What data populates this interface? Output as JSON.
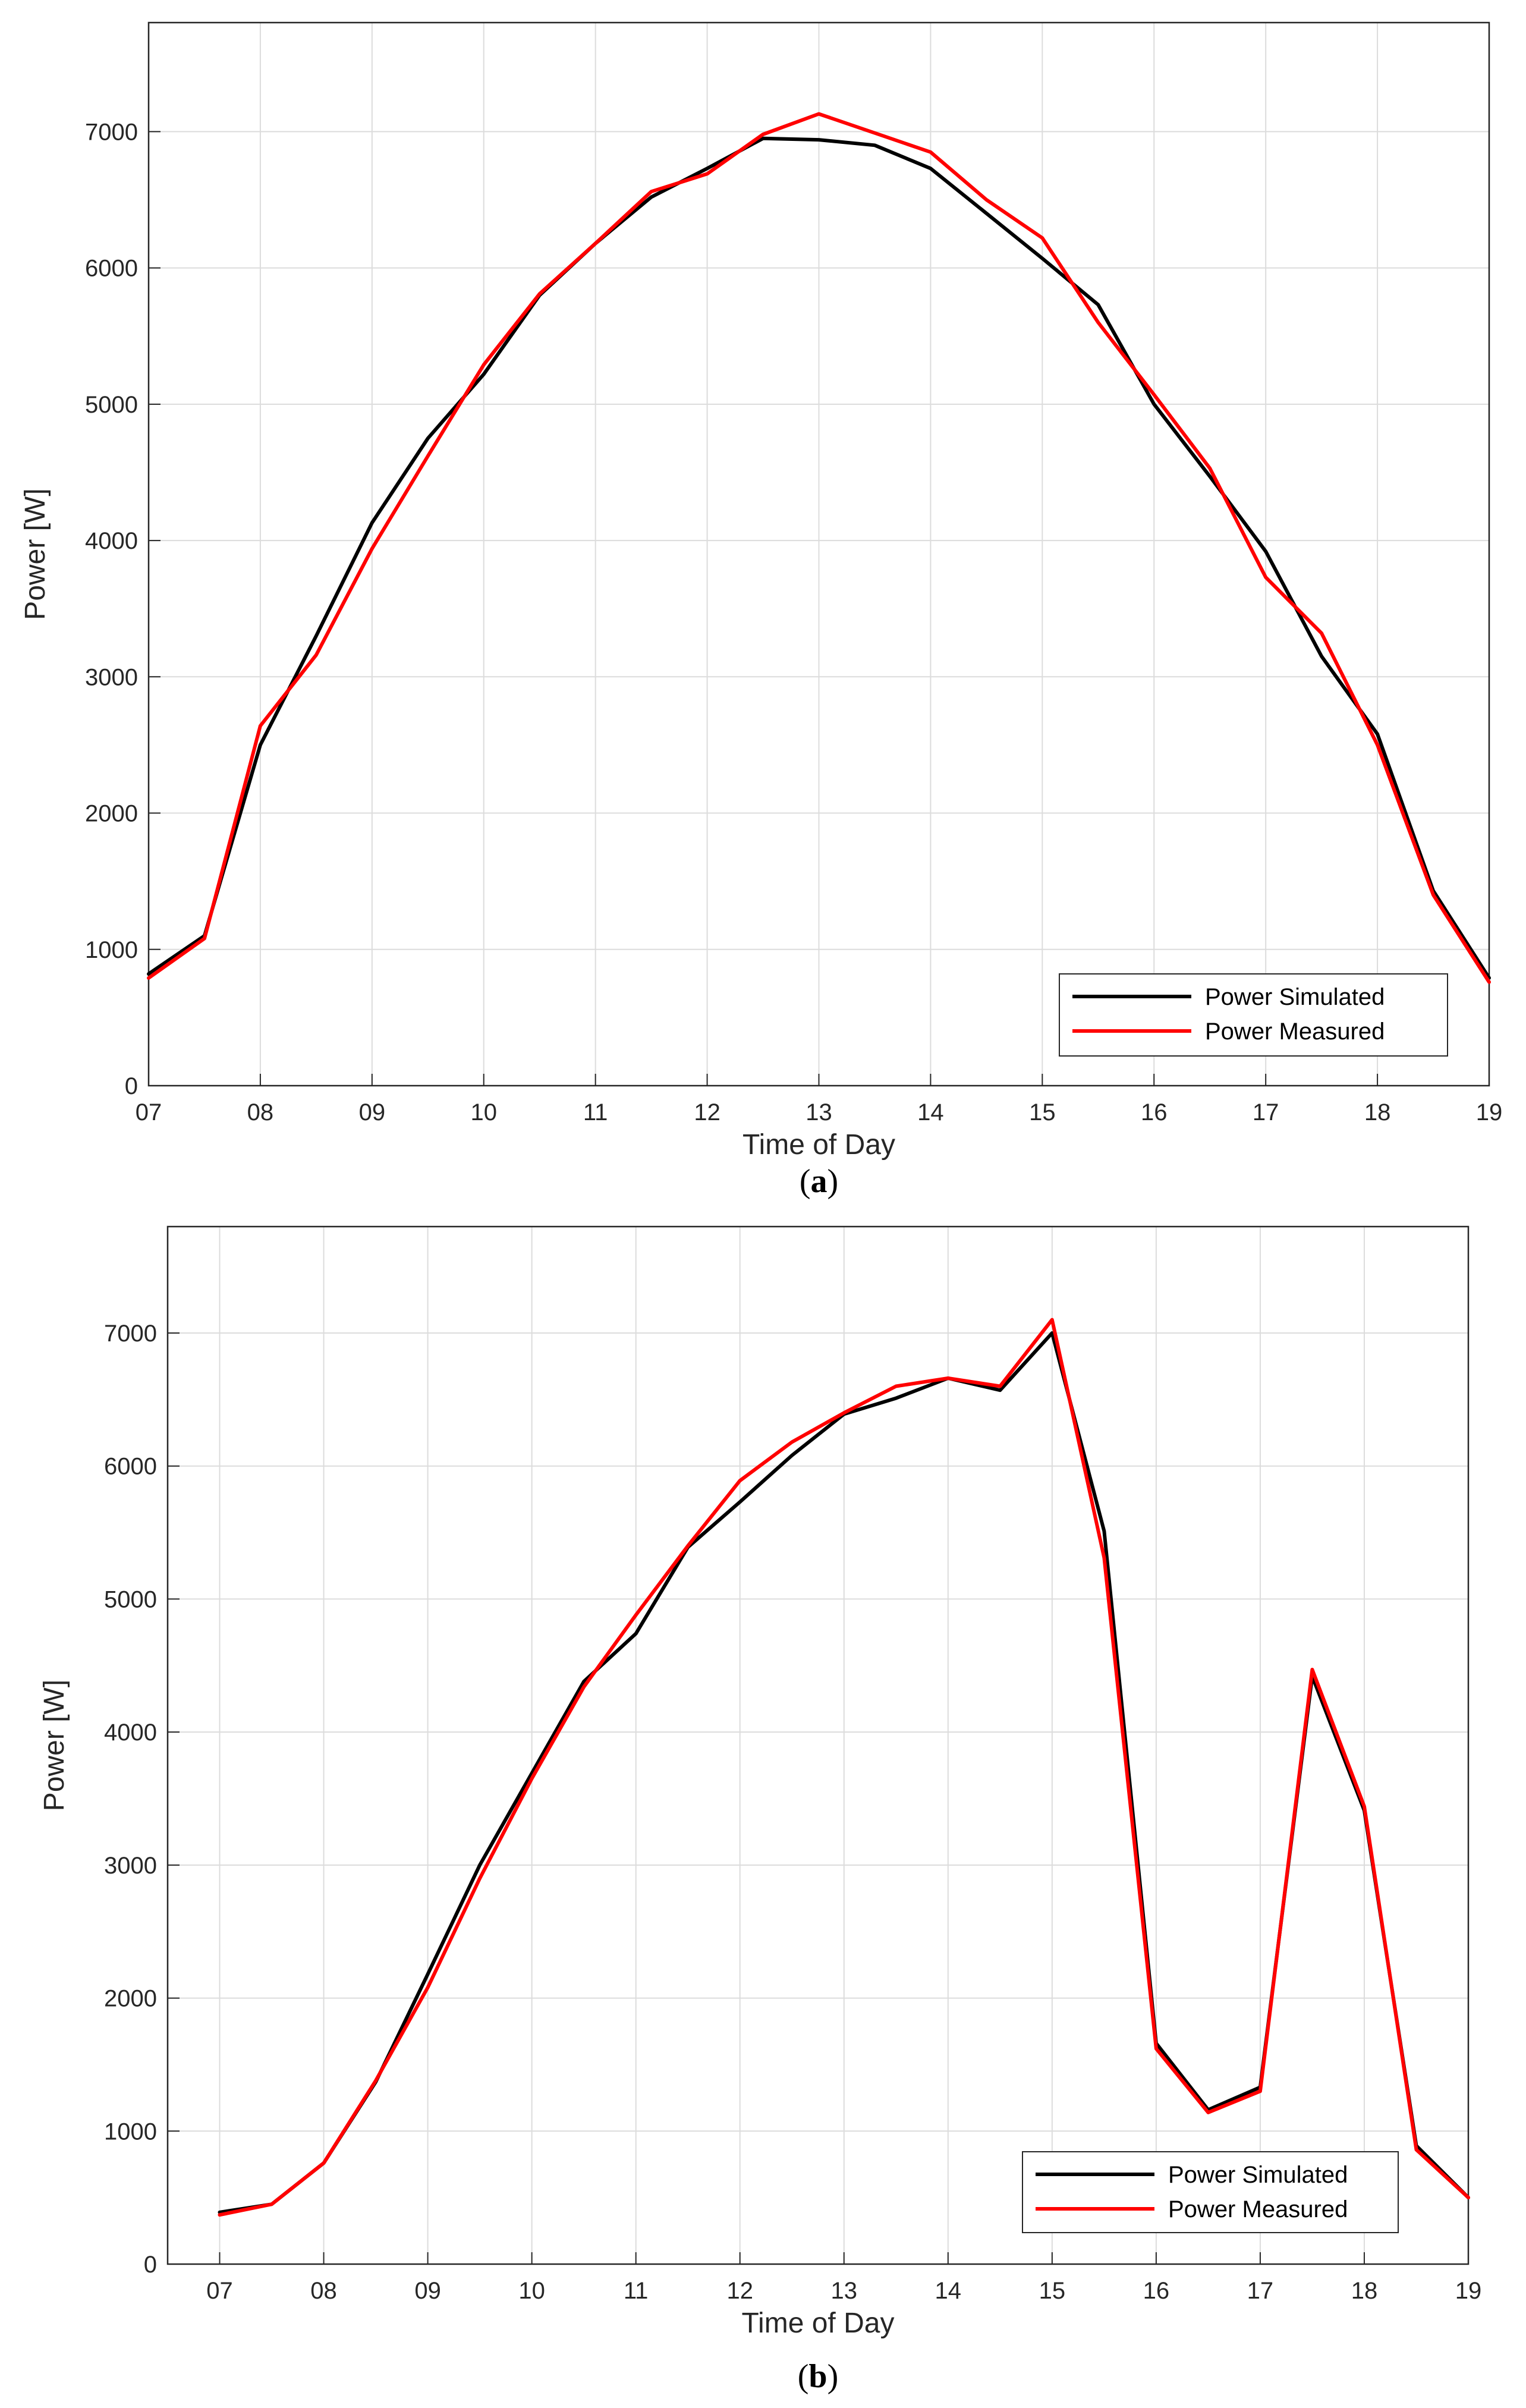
{
  "chart_data": [
    {
      "type": "line",
      "caption": "a",
      "xlabel": "Time of Day",
      "ylabel": "Power [W]",
      "xlim": [
        7,
        19
      ],
      "ylim": [
        0,
        7800
      ],
      "x_tick_labels": [
        "07",
        "08",
        "09",
        "10",
        "11",
        "12",
        "13",
        "14",
        "15",
        "16",
        "17",
        "18",
        "19"
      ],
      "y_ticks": [
        0,
        1000,
        2000,
        3000,
        4000,
        5000,
        6000,
        7000
      ],
      "grid": true,
      "legend_position": "bottom-right",
      "x": [
        7,
        7.5,
        8,
        8.5,
        9,
        9.5,
        10,
        10.5,
        11,
        11.5,
        12,
        12.5,
        13,
        13.5,
        14,
        14.5,
        15,
        15.5,
        16,
        16.5,
        17,
        17.5,
        18,
        18.5,
        19
      ],
      "series": [
        {
          "name": "Power Simulated",
          "color": "#000000",
          "values": [
            820,
            1100,
            2500,
            3300,
            4130,
            4750,
            5220,
            5800,
            6180,
            6520,
            6730,
            6950,
            6940,
            6900,
            6730,
            6400,
            6070,
            5730,
            5000,
            4470,
            3920,
            3150,
            2580,
            1430,
            790
          ]
        },
        {
          "name": "Power Measured",
          "color": "#ff0000",
          "values": [
            790,
            1080,
            2640,
            3160,
            3940,
            4620,
            5290,
            5810,
            6180,
            6560,
            6690,
            6980,
            7130,
            6990,
            6850,
            6500,
            6220,
            5600,
            5070,
            4530,
            3730,
            3320,
            2500,
            1400,
            760
          ]
        }
      ]
    },
    {
      "type": "line",
      "caption": "b",
      "xlabel": "Time of Day",
      "ylabel": "Power [W]",
      "xlim": [
        6.5,
        19
      ],
      "ylim": [
        0,
        7800
      ],
      "x_tick_labels": [
        "07",
        "08",
        "09",
        "10",
        "11",
        "12",
        "13",
        "14",
        "15",
        "16",
        "17",
        "18",
        "19"
      ],
      "y_ticks": [
        0,
        1000,
        2000,
        3000,
        4000,
        5000,
        6000,
        7000
      ],
      "grid": true,
      "legend_position": "bottom-right",
      "x": [
        7,
        7.5,
        8,
        8.5,
        9,
        9.5,
        10,
        10.5,
        11,
        11.5,
        12,
        12.5,
        13,
        13.5,
        14,
        14.5,
        15,
        15.5,
        16,
        16.5,
        17,
        17.5,
        18,
        18.5,
        19
      ],
      "series": [
        {
          "name": "Power Simulated",
          "color": "#000000",
          "values": [
            390,
            450,
            760,
            1370,
            2180,
            3000,
            3690,
            4380,
            4740,
            5390,
            5730,
            6080,
            6390,
            6510,
            6660,
            6570,
            7000,
            5510,
            1660,
            1160,
            1330,
            4420,
            3410,
            890,
            500
          ]
        },
        {
          "name": "Power Measured",
          "color": "#ff0000",
          "values": [
            370,
            450,
            760,
            1380,
            2080,
            2900,
            3650,
            4340,
            4880,
            5400,
            5890,
            6180,
            6400,
            6600,
            6660,
            6600,
            7100,
            5310,
            1620,
            1140,
            1300,
            4470,
            3440,
            860,
            500
          ]
        }
      ]
    }
  ]
}
